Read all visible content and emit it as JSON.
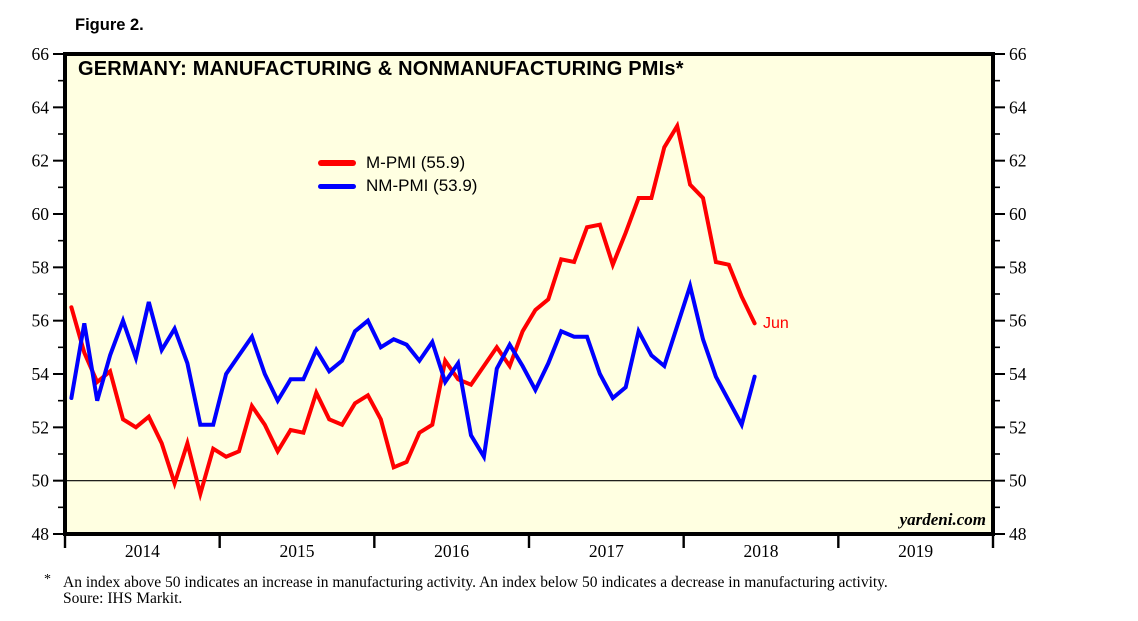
{
  "figure": {
    "label": "Figure 2."
  },
  "chart": {
    "title": "GERMANY: MANUFACTURING & NONMANUFACTURING PMIs*",
    "legend": [
      {
        "label": "M-PMI (55.9)",
        "color": "#FF0000"
      },
      {
        "label": "NM-PMI (53.9)",
        "color": "#0000FF"
      }
    ],
    "annotation": "Jun",
    "watermark": "yardeni.com"
  },
  "footnote": {
    "marker": "*",
    "line1": "An index above 50 indicates an increase in manufacturing activity. An index below 50 indicates a decrease in manufacturing activity.",
    "line2": "Soure: IHS Markit."
  },
  "chart_data": {
    "type": "line",
    "title": "GERMANY: MANUFACTURING & NONMANUFACTURING PMIs*",
    "frequency": "monthly",
    "x_start": "2014-01",
    "x_end": "2018-06",
    "x_axis_year_labels": [
      "2014",
      "2015",
      "2016",
      "2017",
      "2018",
      "2019"
    ],
    "x_axis_total_months": 72,
    "y_ticks": [
      48,
      50,
      52,
      54,
      56,
      58,
      60,
      62,
      64,
      66
    ],
    "ylim": [
      48,
      66
    ],
    "reference_line_y": 50,
    "plot_background": "#FFFFE1",
    "grid": "off",
    "legend_position": "upper-left-inside",
    "last_point_annotation": "Jun",
    "series": [
      {
        "name": "M-PMI",
        "latest_value": 55.9,
        "color": "#FF0000",
        "values": [
          56.5,
          54.8,
          53.7,
          54.1,
          52.3,
          52.0,
          52.4,
          51.4,
          49.9,
          51.4,
          49.5,
          51.2,
          50.9,
          51.1,
          52.8,
          52.1,
          51.1,
          51.9,
          51.8,
          53.3,
          52.3,
          52.1,
          52.9,
          53.2,
          52.3,
          50.5,
          50.7,
          51.8,
          52.1,
          54.5,
          53.8,
          53.6,
          54.3,
          55.0,
          54.3,
          55.6,
          56.4,
          56.8,
          58.3,
          58.2,
          59.5,
          59.6,
          58.1,
          59.3,
          60.6,
          60.6,
          62.5,
          63.3,
          61.1,
          60.6,
          58.2,
          58.1,
          56.9,
          55.9
        ]
      },
      {
        "name": "NM-PMI",
        "latest_value": 53.9,
        "color": "#0000FF",
        "values": [
          53.1,
          55.9,
          53.0,
          54.7,
          56.0,
          54.6,
          56.7,
          54.9,
          55.7,
          54.4,
          52.1,
          52.1,
          54.0,
          54.7,
          55.4,
          54.0,
          53.0,
          53.8,
          53.8,
          54.9,
          54.1,
          54.5,
          55.6,
          56.0,
          55.0,
          55.3,
          55.1,
          54.5,
          55.2,
          53.7,
          54.4,
          51.7,
          50.9,
          54.2,
          55.1,
          54.3,
          53.4,
          54.4,
          55.6,
          55.4,
          55.4,
          54.0,
          53.1,
          53.5,
          55.6,
          54.7,
          54.3,
          55.8,
          57.3,
          55.3,
          53.9,
          53.0,
          52.1,
          53.9
        ]
      }
    ]
  }
}
